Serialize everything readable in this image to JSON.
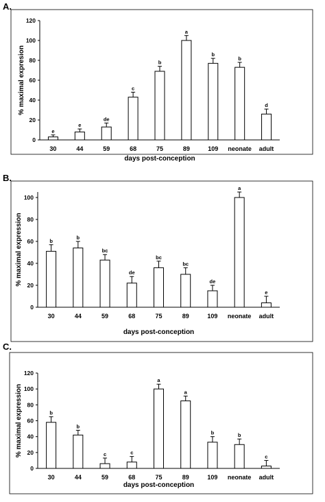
{
  "chart_data": [
    {
      "type": "bar",
      "panel_label": "A.",
      "categories": [
        "30",
        "44",
        "59",
        "68",
        "75",
        "89",
        "109",
        "neonate",
        "adult"
      ],
      "values": [
        3,
        8,
        13,
        43,
        69,
        100,
        77,
        73,
        26
      ],
      "errors": [
        2,
        3,
        4,
        5,
        5,
        5,
        5,
        5,
        5
      ],
      "significance": [
        "e",
        "e",
        "de",
        "c",
        "b",
        "a",
        "b",
        "b",
        "d"
      ],
      "xlabel": "days post-conception",
      "ylabel": "% maximal expresion",
      "ylim": [
        0,
        120
      ],
      "yticks": [
        0,
        20,
        40,
        60,
        80,
        100,
        120
      ],
      "grid": false
    },
    {
      "type": "bar",
      "panel_label": "B.",
      "categories": [
        "30",
        "44",
        "59",
        "68",
        "75",
        "89",
        "109",
        "neonate",
        "adult"
      ],
      "values": [
        51,
        54,
        43,
        22,
        36,
        30,
        15,
        100,
        4
      ],
      "errors": [
        6,
        6,
        5,
        6,
        6,
        6,
        5,
        5,
        6
      ],
      "significance": [
        "b",
        "b",
        "bc",
        "de",
        "bc",
        "bc",
        "de",
        "a",
        "e"
      ],
      "xlabel": "days post-conception",
      "ylabel": "% maximal expression",
      "ylim": [
        0,
        105
      ],
      "yticks": [
        0,
        20,
        40,
        60,
        80,
        100
      ],
      "grid": false
    },
    {
      "type": "bar",
      "panel_label": "C.",
      "categories": [
        "30",
        "44",
        "59",
        "68",
        "75",
        "89",
        "109",
        "neonate",
        "adult"
      ],
      "values": [
        58,
        42,
        6,
        8,
        100,
        85,
        33,
        30,
        3
      ],
      "errors": [
        7,
        6,
        7,
        7,
        6,
        6,
        7,
        7,
        7
      ],
      "significance": [
        "b",
        "b",
        "c",
        "c",
        "a",
        "a",
        "b",
        "b",
        "c"
      ],
      "xlabel": "days post-conception",
      "ylabel": "% maximal expression",
      "ylim": [
        0,
        120
      ],
      "yticks": [
        0,
        20,
        40,
        60,
        80,
        100,
        120
      ],
      "grid": false
    }
  ]
}
